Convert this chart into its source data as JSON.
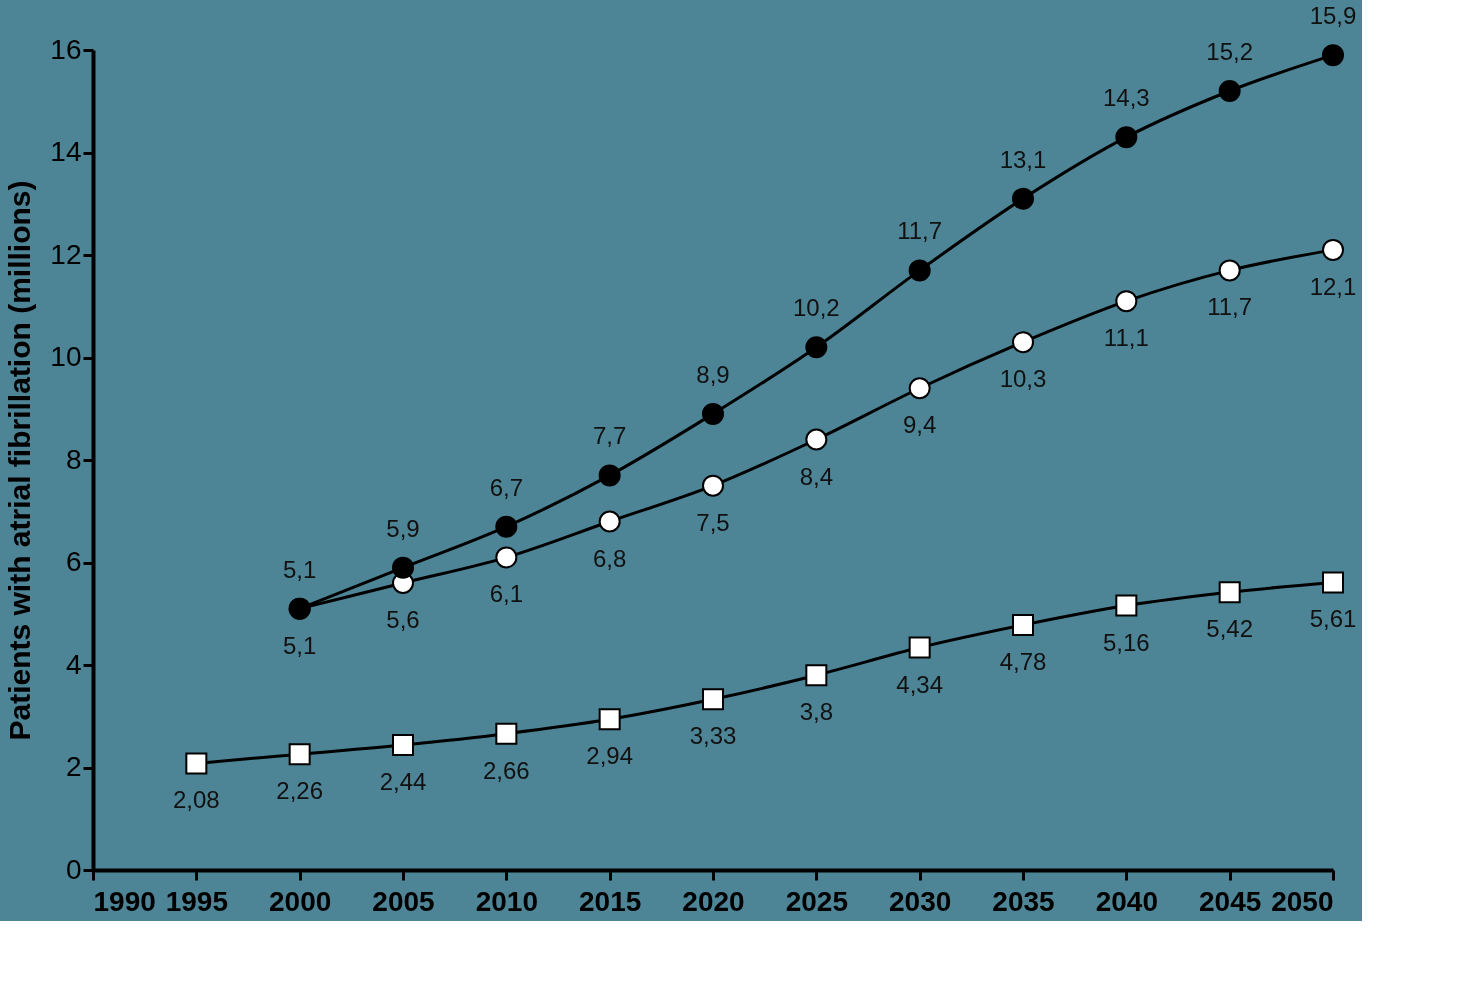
{
  "chart_data": {
    "type": "line",
    "ylabel": "Patients with atrial fibrillation (millions)",
    "xlim": [
      1990,
      2050
    ],
    "xticks": [
      1990,
      1995,
      2000,
      2005,
      2010,
      2015,
      2020,
      2025,
      2030,
      2035,
      2040,
      2045,
      2050
    ],
    "ylim": [
      0,
      16
    ],
    "yticks": [
      0,
      2,
      4,
      6,
      8,
      10,
      12,
      14,
      16
    ],
    "grid": false,
    "line_style": "solid",
    "series": [
      {
        "color": "#000000",
        "marker": "circle",
        "x": [
          2000,
          2005,
          2010,
          2015,
          2020,
          2025,
          2030,
          2035,
          2040,
          2045,
          2050
        ],
        "values": [
          5.1,
          5.9,
          6.7,
          7.7,
          8.9,
          10.2,
          11.7,
          13.1,
          14.3,
          15.2,
          15.9
        ],
        "value_labels": [
          "5,1",
          "5,9",
          "6,7",
          "7,7",
          "8,9",
          "10,2",
          "11,7",
          "13,1",
          "14,3",
          "15,2",
          "15,9"
        ]
      },
      {
        "color": "#ffffff",
        "marker": "circle",
        "x": [
          2000,
          2005,
          2010,
          2015,
          2020,
          2025,
          2030,
          2035,
          2040,
          2045,
          2050
        ],
        "values": [
          5.1,
          5.6,
          6.1,
          6.8,
          7.5,
          8.4,
          9.4,
          10.3,
          11.1,
          11.7,
          12.1
        ],
        "value_labels": [
          "5,1",
          "5,6",
          "6,1",
          "6,8",
          "7,5",
          "8,4",
          "9,4",
          "10,3",
          "11,1",
          "11,7",
          "12,1"
        ]
      },
      {
        "color": "#ffffff",
        "marker": "square",
        "x": [
          1995,
          2000,
          2005,
          2010,
          2015,
          2020,
          2025,
          2030,
          2035,
          2040,
          2045,
          2050
        ],
        "values": [
          2.08,
          2.26,
          2.44,
          2.66,
          2.94,
          3.33,
          3.8,
          4.34,
          4.78,
          5.16,
          5.42,
          5.61
        ],
        "value_labels": [
          "2,08",
          "2,26",
          "2,44",
          "2,66",
          "2,94",
          "3,33",
          "3,8",
          "4,34",
          "4,78",
          "5,16",
          "5,42",
          "5,61"
        ]
      }
    ]
  }
}
